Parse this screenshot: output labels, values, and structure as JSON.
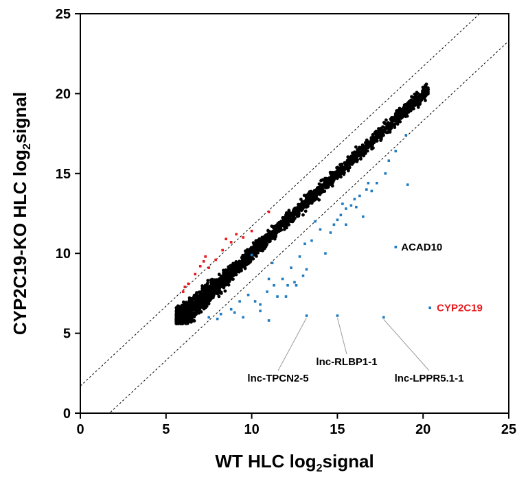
{
  "chart_data": {
    "type": "scatter",
    "title": "",
    "xlabel": {
      "pre": "WT HLC log",
      "sub": "2",
      "post": "signal"
    },
    "ylabel": {
      "pre": "CYP2C19-KO HLC log",
      "sub": "2",
      "post": "signal"
    },
    "xlim": [
      0,
      25
    ],
    "ylim": [
      0,
      25
    ],
    "xticks": [
      "0",
      "5",
      "10",
      "15",
      "20",
      "25"
    ],
    "yticks": [
      "0",
      "5",
      "10",
      "15",
      "20",
      "25"
    ],
    "grid": false,
    "legend": "none",
    "colors": {
      "bulk": "#000000",
      "up": "#e8181c",
      "down": "#1f7bc1",
      "red_label": "#e8181c",
      "guide": "#000000"
    },
    "threshold_lines": [
      {
        "intercept": 1.7,
        "slope": 1.0
      },
      {
        "intercept": -1.7,
        "slope": 1.0
      }
    ],
    "bulk_band": {
      "x_start": 5.6,
      "x_end": 20.3,
      "slope": 1.0,
      "spread": 0.35
    },
    "series": [
      {
        "role": "up",
        "x": [
          6.0,
          6.3,
          6.7,
          7.0,
          7.2,
          7.5,
          7.9,
          8.3,
          8.8,
          9.1,
          10.0,
          11.0,
          6.1,
          7.3,
          8.5,
          9.5
        ],
        "y": [
          7.6,
          8.1,
          8.7,
          9.2,
          9.5,
          9.1,
          9.6,
          10.2,
          10.7,
          11.2,
          11.4,
          12.6,
          7.9,
          9.8,
          10.9,
          11.0
        ]
      },
      {
        "role": "down",
        "x": [
          7.5,
          8.2,
          8.8,
          9.0,
          9.3,
          9.8,
          10.2,
          10.5,
          10.9,
          11.3,
          11.5,
          11.8,
          12.1,
          12.5,
          12.8,
          13.0,
          13.2,
          13.5,
          14.0,
          14.3,
          14.8,
          15.0,
          15.2,
          15.5,
          15.8,
          16.0,
          16.3,
          16.7,
          17.3,
          17.8,
          19.0,
          18.4,
          18.0,
          16.8,
          16.5,
          15.5,
          12.3,
          11.0,
          10.5,
          9.5,
          12.0,
          13.1,
          11.2,
          10.0,
          12.6,
          13.7,
          14.6,
          15.3,
          16.1,
          17.0
        ],
        "y": [
          6.0,
          6.2,
          6.5,
          6.3,
          7.0,
          7.4,
          7.0,
          6.8,
          7.6,
          8.0,
          7.3,
          8.4,
          8.0,
          8.2,
          9.8,
          8.6,
          9.0,
          10.8,
          11.5,
          10.0,
          11.8,
          12.1,
          12.4,
          11.8,
          13.0,
          13.4,
          13.6,
          14.0,
          14.4,
          15.0,
          17.4,
          16.4,
          15.8,
          14.4,
          12.3,
          12.8,
          9.1,
          8.4,
          6.4,
          6.0,
          7.3,
          10.6,
          9.4,
          9.9,
          8.0,
          12.0,
          11.3,
          13.1,
          12.9,
          13.9
        ]
      },
      {
        "role": "labeled",
        "x": [
          18.4,
          20.4,
          13.2,
          15.0,
          17.7,
          11.0,
          8.0,
          19.1
        ],
        "y": [
          10.4,
          6.6,
          6.1,
          6.1,
          6.0,
          5.8,
          5.9,
          14.3
        ]
      }
    ],
    "annotations": [
      {
        "text": "ACAD10",
        "x": 18.4,
        "y": 10.4,
        "color": "#000000",
        "leader": false
      },
      {
        "text": "CYP2C19",
        "x": 20.4,
        "y": 6.6,
        "color": "#e8181c",
        "leader": false
      },
      {
        "text": "lnc-TPCN2-5",
        "x": 13.2,
        "y": 6.1,
        "color": "#000000",
        "leader": true
      },
      {
        "text": "lnc-RLBP1-1",
        "x": 15.0,
        "y": 6.1,
        "color": "#000000",
        "leader": true
      },
      {
        "text": "lnc-LPPR5.1-1",
        "x": 17.7,
        "y": 6.0,
        "color": "#000000",
        "leader": true
      }
    ]
  }
}
